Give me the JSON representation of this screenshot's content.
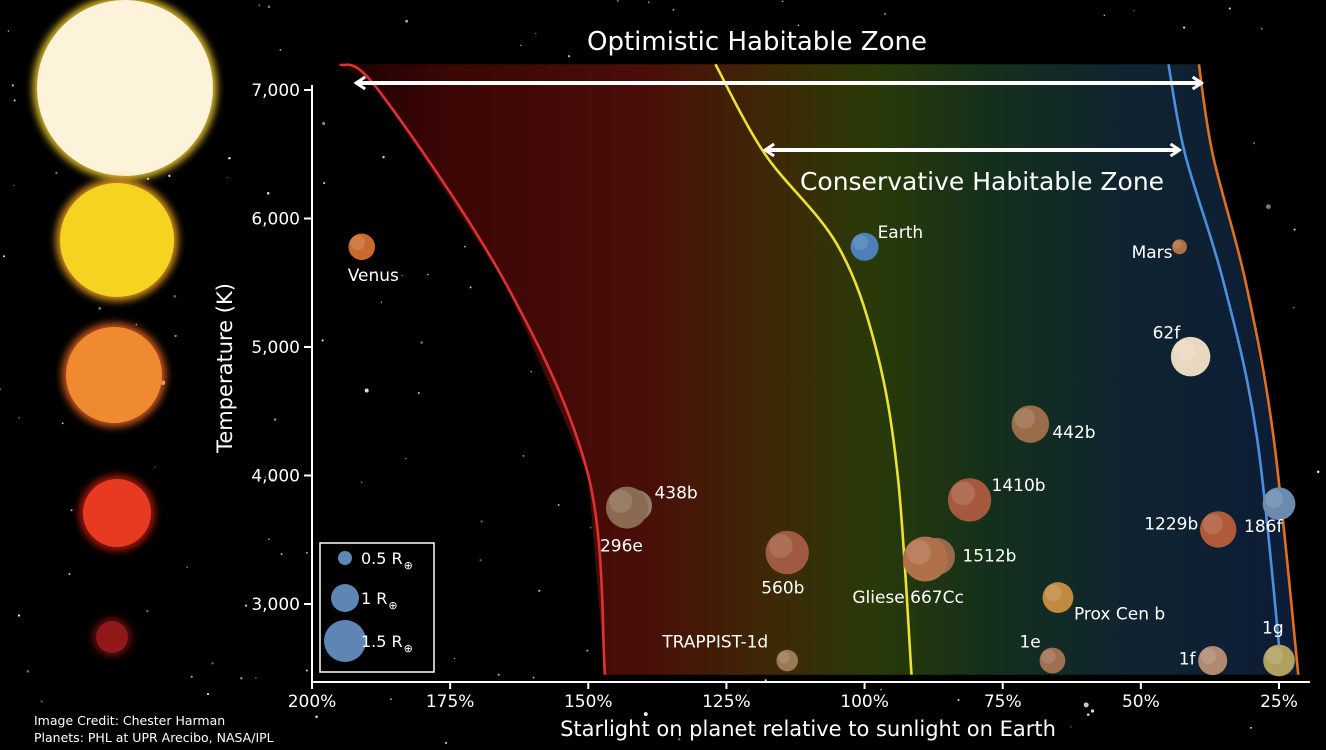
{
  "chart_data": {
    "type": "scatter",
    "title": "",
    "xlabel": "Starlight on planet relative to sunlight on Earth",
    "ylabel": "Temperature (K)",
    "x_ticks": [
      "200%",
      "175%",
      "150%",
      "125%",
      "100%",
      "75%",
      "50%",
      "25%"
    ],
    "x_tick_values": [
      200,
      175,
      150,
      125,
      100,
      75,
      50,
      25
    ],
    "y_ticks": [
      "3,000",
      "4,000",
      "5,000",
      "6,000",
      "7,000"
    ],
    "y_tick_values": [
      3000,
      4000,
      5000,
      6000,
      7000
    ],
    "xlim": [
      200,
      21
    ],
    "ylim": [
      2400,
      7200
    ],
    "grid": false,
    "planets": [
      {
        "label": "Venus",
        "x": 191,
        "y": 5780,
        "radius": 0.95,
        "color": "#c96a2c"
      },
      {
        "label": "Earth",
        "x": 100,
        "y": 5780,
        "radius": 1.0,
        "color": "#4d7fb8"
      },
      {
        "label": "Mars",
        "x": 43,
        "y": 5780,
        "radius": 0.53,
        "color": "#b3703f"
      },
      {
        "label": "62f",
        "x": 41,
        "y": 4925,
        "radius": 1.41,
        "color": "#e8d8c0"
      },
      {
        "label": "442b",
        "x": 70,
        "y": 4400,
        "radius": 1.34,
        "color": "#9a6c4a"
      },
      {
        "label": "1410b",
        "x": 81,
        "y": 3810,
        "radius": 1.55,
        "color": "#a55a3e"
      },
      {
        "label": "438b",
        "x": 142,
        "y": 3750,
        "radius": 1.12,
        "color": "#9a7a60"
      },
      {
        "label": "296e",
        "x": 143,
        "y": 3750,
        "radius": 1.5,
        "color": "#8a6a50"
      },
      {
        "label": "560b",
        "x": 114,
        "y": 3400,
        "radius": 1.55,
        "color": "#a05a40"
      },
      {
        "label": "1512b",
        "x": 87,
        "y": 3370,
        "radius": 1.33,
        "color": "#996a4a"
      },
      {
        "label": "Gliese 667Cc",
        "x": 89,
        "y": 3350,
        "radius": 1.6,
        "color": "#b0704a"
      },
      {
        "label": "1229b",
        "x": 36,
        "y": 3580,
        "radius": 1.3,
        "color": "#b05a3a"
      },
      {
        "label": "186f",
        "x": 25,
        "y": 3780,
        "radius": 1.17,
        "color": "#6a8ab0"
      },
      {
        "label": "Prox Cen b",
        "x": 65,
        "y": 3050,
        "radius": 1.1,
        "color": "#c08a40"
      },
      {
        "label": "TRAPPIST-1d",
        "x": 114,
        "y": 2560,
        "radius": 0.77,
        "color": "#9a7a50"
      },
      {
        "label": "1e",
        "x": 66,
        "y": 2560,
        "radius": 0.92,
        "color": "#a07050"
      },
      {
        "label": "1f",
        "x": 37,
        "y": 2560,
        "radius": 1.04,
        "color": "#b08a70"
      },
      {
        "label": "1g",
        "x": 25,
        "y": 2560,
        "radius": 1.13,
        "color": "#b0a060"
      }
    ],
    "zone_boundaries": [
      {
        "name": "recent-venus",
        "color": "#e03030",
        "points": [
          [
            195,
            7200
          ],
          [
            188,
            7000
          ],
          [
            165,
            5500
          ],
          [
            150,
            4000
          ],
          [
            147,
            2450
          ]
        ]
      },
      {
        "name": "runaway-greenhouse",
        "color": "#f0e030",
        "points": [
          [
            127,
            7200
          ],
          [
            118,
            6500
          ],
          [
            105,
            5800
          ],
          [
            98,
            5000
          ],
          [
            94,
            4000
          ],
          [
            91.5,
            2450
          ]
        ]
      },
      {
        "name": "maximum-greenhouse",
        "color": "#4a90e0",
        "points": [
          [
            45,
            7200
          ],
          [
            42,
            6500
          ],
          [
            35,
            5500
          ],
          [
            29,
            4300
          ],
          [
            24.5,
            2450
          ]
        ]
      },
      {
        "name": "early-mars",
        "color": "#e07020",
        "points": [
          [
            39.5,
            7200
          ],
          [
            37,
            6500
          ],
          [
            31,
            5500
          ],
          [
            26,
            4300
          ],
          [
            21.5,
            2450
          ]
        ]
      }
    ],
    "annotations": [
      {
        "text": "Optimistic Habitable Zone",
        "from": 192,
        "to": 39,
        "y": 7000
      },
      {
        "text": "Conservative Habitable Zone",
        "from": 118,
        "to": 43,
        "y": 6550
      }
    ],
    "legend": {
      "placement": "bottom-left",
      "entries": [
        {
          "label": "0.5 R",
          "symbol": "⊕",
          "radius": 0.5
        },
        {
          "label": "1 R",
          "symbol": "⊕",
          "radius": 1.0
        },
        {
          "label": "1.5 R",
          "symbol": "⊕",
          "radius": 1.5
        }
      ]
    },
    "stars": [
      {
        "name": "star-white",
        "color": "#fdf3da",
        "glow": "#f5d030"
      },
      {
        "name": "star-yellow",
        "color": "#f4d421",
        "glow": "#f0a020"
      },
      {
        "name": "star-orange",
        "color": "#f08a30",
        "glow": "#e06020"
      },
      {
        "name": "star-red",
        "color": "#e83a20",
        "glow": "#b01a10"
      },
      {
        "name": "star-dark-red",
        "color": "#901818",
        "glow": "#601010"
      }
    ]
  },
  "credits": {
    "line1": "Image Credit: Chester Harman",
    "line2": "Planets:  PHL at UPR Arecibo, NASA/IPL"
  }
}
